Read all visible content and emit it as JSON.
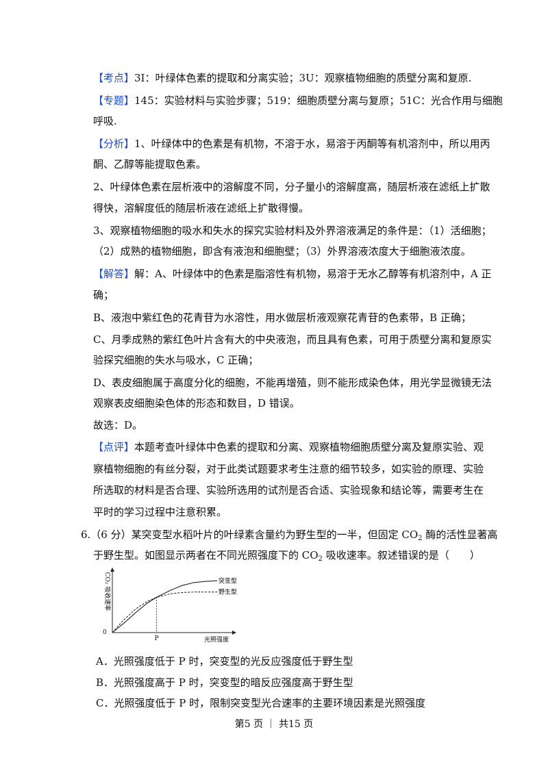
{
  "analysis": {
    "kaodian": {
      "tag": "【考点】",
      "text": "3I：叶绿体色素的提取和分离实验；3U：观察植物细胞的质壁分离和复原."
    },
    "zhuanti": {
      "tag": "【专题】",
      "text": "145：实验材料与实验步骤；519：细胞质壁分离与复原；51C：光合作用与细胞",
      "cont": "呼吸."
    },
    "fenxi": {
      "tag": "【分析】",
      "l1": "1、叶绿体中的色素是有机物，不溶于水，易溶于丙酮等有机溶剂中，所以用丙",
      "l2": "酮、乙醇等能提取色素。",
      "l3": "2、叶绿体色素在层析液中的溶解度不同，分子量小的溶解度高，随层析液在滤纸上扩散",
      "l4": "得快，溶解度低的随层析液在滤纸上扩散得慢。",
      "l5": "3、观察植物细胞的吸水和失水的探究实验材料及外界溶液满足的条件是：（1）活细胞；",
      "l6": "（2）成熟的植物细胞，即含有液泡和细胞壁；（3）外界溶液浓度大于细胞液浓度。"
    },
    "jieda": {
      "tag": "【解答】",
      "l1": "解：A、叶绿体中的色素是脂溶性有机物，易溶于无水乙醇等有机溶剂中，A 正",
      "l2": "确；",
      "l3": "B、液泡中紫红色的花青苷为水溶性，用水做层析液观察花青苷的色素带，B 正确；",
      "l4": "C、月季成熟的紫红色叶片含有大的中央液泡，而且具有色素，可用于质壁分离和复原实",
      "l5": "验探究细胞的失水与吸水，C 正确；",
      "l6": "D、表皮细胞属于高度分化的细胞，不能再增殖，则不能形成染色体，用光学显微镜无法",
      "l7": "观察表皮细胞染色体的形态和数目，D 错误。",
      "l8": "故选：D。"
    },
    "dianping": {
      "tag": "【点评】",
      "l1": "本题考查叶绿体中色素的提取和分离、观察植物细胞质壁分离及复原实验、观",
      "l2": "察植物细胞的有丝分裂，对于此类试题要求考生注意的细节较多，如实验的原理、实验",
      "l3": "所选取的材料是否合理、实验所选用的试剂是否合适、实验现象和结论等，需要考生在",
      "l4": "平时的学习过程中注意积累。"
    }
  },
  "question": {
    "l1_pre": "6.（6 分）某突变型水稻叶片的叶绿素含量约为野生型的一半，但固定 CO",
    "l1_sub": "2",
    "l1_post": " 酶的活性显著高",
    "l2_pre": "于野生型。如图显示两者在不同光照强度下的 CO",
    "l2_sub": "2",
    "l2_post": " 吸收速率。叙述错误的是（　　）",
    "options": {
      "A": "A．光照强度低于 P 时，突变型的光反应强度低于野生型",
      "B": "B．光照强度高于 P 时，突变型的暗反应强度高于野生型",
      "C": "C．光照强度低于 P 时，限制突变型光合速率的主要环境因素是光照强度"
    }
  },
  "chart_data": {
    "type": "line",
    "ylabel": "CO₂ 吸收速率",
    "xlabel": "光照强度",
    "origin_label": "0",
    "x_mark_label": "P",
    "series": [
      {
        "name": "突变型",
        "style": "solid",
        "x": [
          0,
          0.1,
          0.2,
          0.3,
          0.38,
          0.5,
          0.6,
          0.7,
          0.8,
          0.9
        ],
        "y": [
          0,
          0.16,
          0.34,
          0.5,
          0.6,
          0.72,
          0.8,
          0.85,
          0.87,
          0.88
        ]
      },
      {
        "name": "野生型",
        "style": "dashed",
        "x": [
          0,
          0.1,
          0.2,
          0.3,
          0.38,
          0.5,
          0.6,
          0.7,
          0.8,
          0.9
        ],
        "y": [
          0,
          0.22,
          0.4,
          0.53,
          0.6,
          0.66,
          0.68,
          0.69,
          0.69,
          0.69
        ]
      }
    ],
    "p_x": 0.38,
    "xlim": [
      0,
      1
    ],
    "ylim": [
      0,
      1
    ]
  },
  "footer": {
    "page": "第5 页 ｜ 共15 页"
  }
}
